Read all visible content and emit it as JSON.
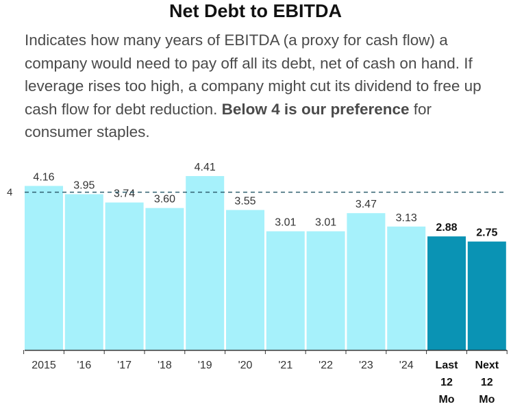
{
  "chart_data": {
    "type": "bar",
    "title": "Net Debt to EBITDA",
    "description": {
      "before": "Indicates how many years of EBITDA (a proxy for cash flow) a company would need to pay off all its debt, net of cash on hand. If leverage rises too high, a company might cut its dividend to free up cash flow for debt reduction. ",
      "bold": "Below 4 is our preference",
      "after": " for consumer staples."
    },
    "categories": [
      "2015",
      "'16",
      "'17",
      "'18",
      "'19",
      "'20",
      "'21",
      "'22",
      "'23",
      "'24",
      "Last 12 Mo",
      "Next 12 Mo"
    ],
    "values": [
      4.16,
      3.95,
      3.74,
      3.6,
      4.41,
      3.55,
      3.01,
      3.01,
      3.47,
      3.13,
      2.88,
      2.75
    ],
    "value_labels": [
      "4.16",
      "3.95",
      "3.74",
      "3.60",
      "4.41",
      "3.55",
      "3.01",
      "3.01",
      "3.47",
      "3.13",
      "2.88",
      "2.75"
    ],
    "highlighted": [
      false,
      false,
      false,
      false,
      false,
      false,
      false,
      false,
      false,
      false,
      true,
      true
    ],
    "reference_line": {
      "value": 4,
      "label": "4"
    },
    "ylim": [
      0,
      4.55
    ],
    "grid": false,
    "colors": {
      "bar": "#a6f1fb",
      "highlight": "#0a93b4",
      "reference": "#2f5f6f",
      "axis": "#333333"
    }
  }
}
